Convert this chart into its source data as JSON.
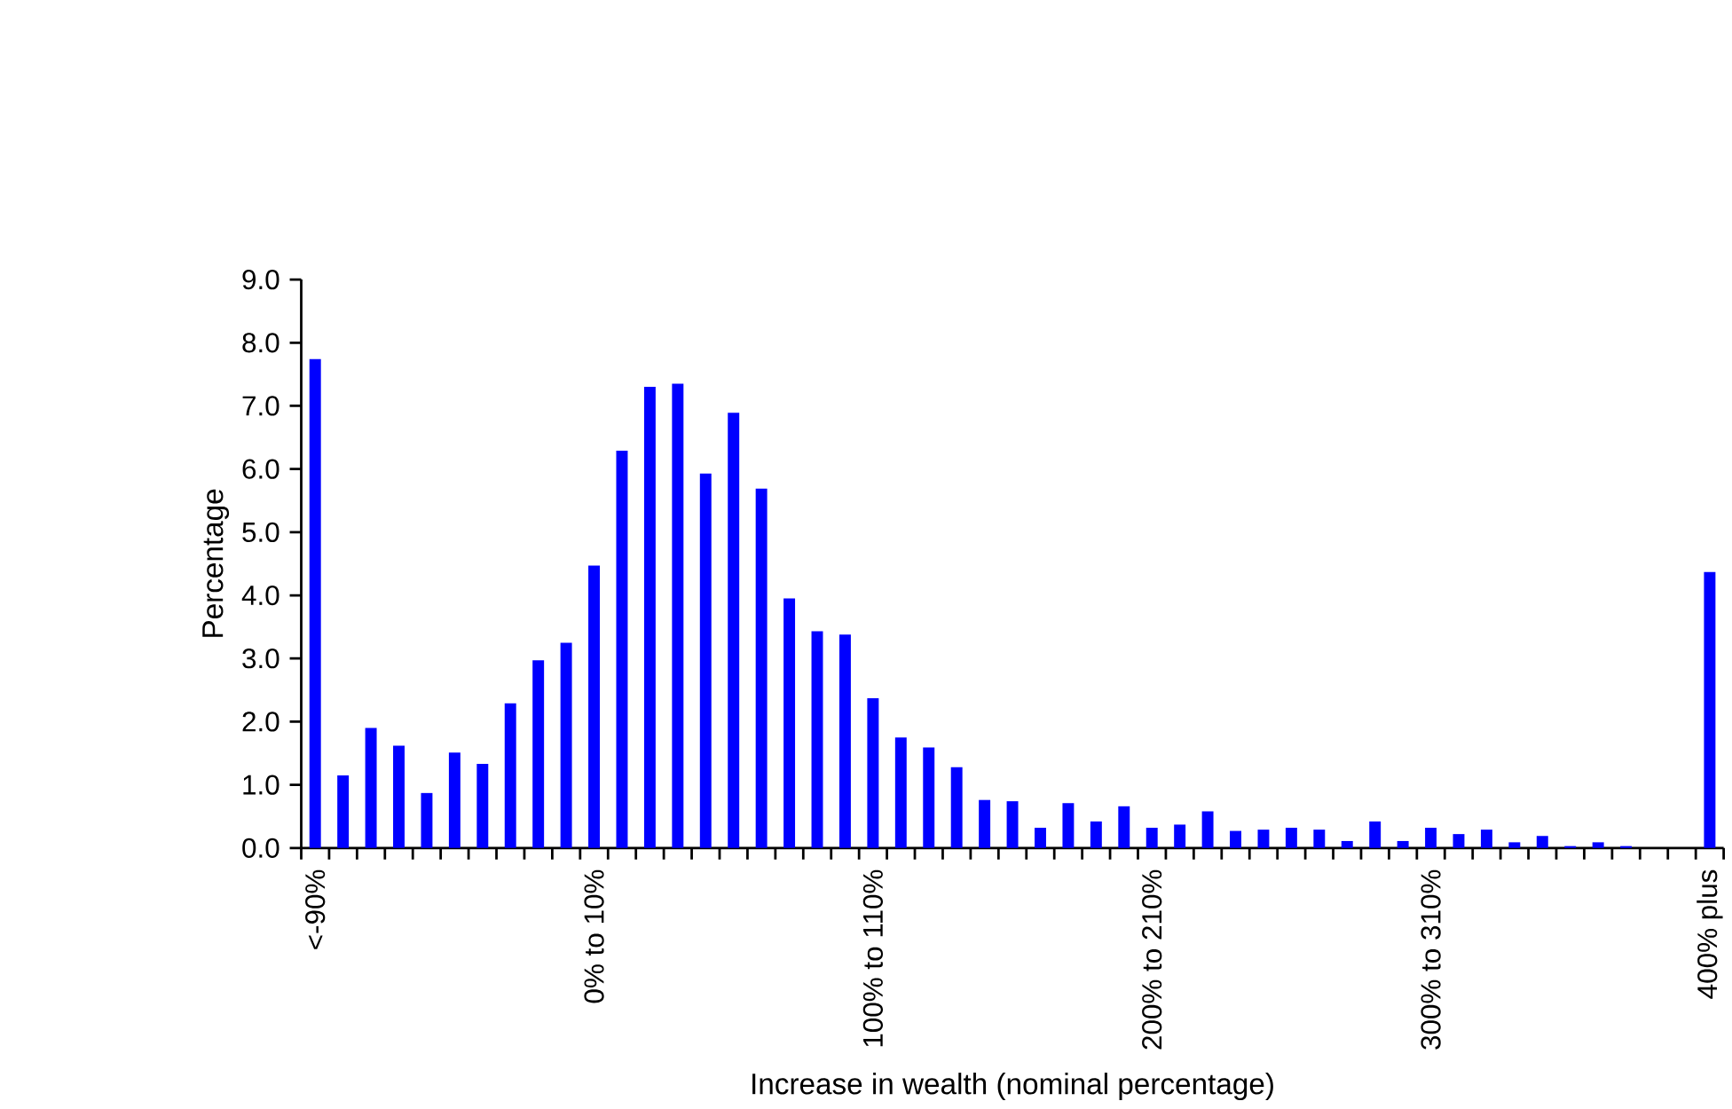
{
  "chart_data": {
    "type": "bar",
    "xlabel": "Increase in wealth (nominal percentage)",
    "ylabel": "Percentage",
    "categories": [
      "<-90%",
      null,
      null,
      null,
      null,
      null,
      null,
      null,
      null,
      null,
      "0% to 10%",
      null,
      null,
      null,
      null,
      null,
      null,
      null,
      null,
      null,
      "100% to 110%",
      null,
      null,
      null,
      null,
      null,
      null,
      null,
      null,
      null,
      "200% to 210%",
      null,
      null,
      null,
      null,
      null,
      null,
      null,
      null,
      null,
      "300% to 310%",
      null,
      null,
      null,
      null,
      null,
      null,
      null,
      null,
      null,
      "400% plus"
    ],
    "values": [
      7.74,
      1.15,
      1.9,
      1.62,
      0.87,
      1.51,
      1.33,
      2.29,
      2.97,
      3.25,
      4.47,
      6.29,
      7.3,
      7.35,
      5.93,
      6.89,
      5.69,
      3.95,
      3.43,
      3.38,
      2.37,
      1.75,
      1.59,
      1.28,
      0.76,
      0.74,
      0.32,
      0.71,
      0.42,
      0.66,
      0.32,
      0.37,
      0.58,
      0.27,
      0.29,
      0.32,
      0.29,
      0.11,
      0.42,
      0.11,
      0.32,
      0.22,
      0.29,
      0.09,
      0.19,
      0.03,
      0.09,
      0.03,
      0,
      0,
      4.37
    ],
    "color": "#0000ff",
    "ylim": [
      0,
      9
    ],
    "yticks": [
      {
        "value": 0,
        "label": "0.0"
      },
      {
        "value": 1,
        "label": "1.0"
      },
      {
        "value": 2,
        "label": "2.0"
      },
      {
        "value": 3,
        "label": "3.0"
      },
      {
        "value": 4,
        "label": "4.0"
      },
      {
        "value": 5,
        "label": "5.0"
      },
      {
        "value": 6,
        "label": "6.0"
      },
      {
        "value": 7,
        "label": "7.0"
      },
      {
        "value": 8,
        "label": "8.0"
      },
      {
        "value": 9,
        "label": "9.0"
      }
    ]
  }
}
